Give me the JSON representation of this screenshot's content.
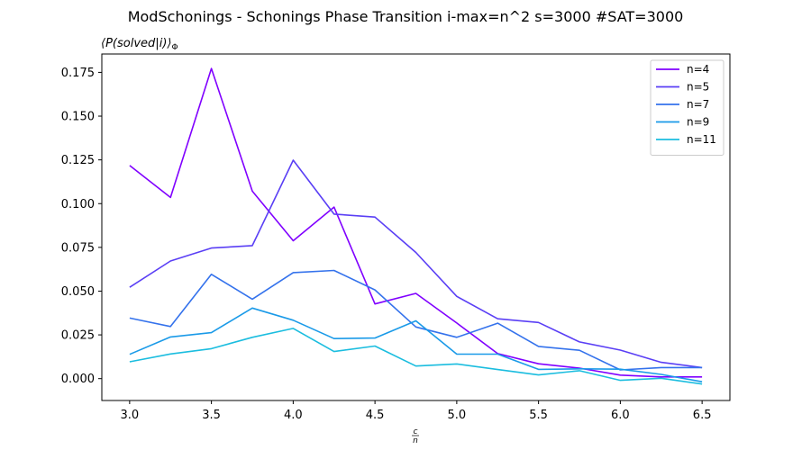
{
  "chart_data": {
    "type": "line",
    "title": "ModSchonings - Schonings Phase Transition  i-max=n^2 s=3000 #SAT=3000",
    "ylabel": "⟨P(solved|i)⟩Φ",
    "xlabel": "c/n",
    "xlim": [
      2.83,
      6.67
    ],
    "ylim": [
      -0.0125,
      0.1855
    ],
    "x": [
      3.0,
      3.25,
      3.5,
      3.75,
      4.0,
      4.25,
      4.5,
      4.75,
      5.0,
      5.25,
      5.5,
      5.75,
      6.0,
      6.25,
      6.5
    ],
    "x_ticks": [
      "3.0",
      "3.5",
      "4.0",
      "4.5",
      "5.0",
      "5.5",
      "6.0",
      "6.5"
    ],
    "y_ticks": [
      "0.000",
      "0.025",
      "0.050",
      "0.075",
      "0.100",
      "0.125",
      "0.150",
      "0.175"
    ],
    "legend_position": "top-right",
    "grid": false,
    "series": [
      {
        "name": "n=4",
        "color": "#8000ff",
        "values": [
          0.1218,
          0.1035,
          0.1772,
          0.1071,
          0.0788,
          0.098,
          0.0427,
          0.0487,
          0.0318,
          0.0143,
          0.0085,
          0.006,
          0.002,
          0.001,
          0.001
        ]
      },
      {
        "name": "n=5",
        "color": "#5a3ff5",
        "values": [
          0.0522,
          0.0672,
          0.0746,
          0.076,
          0.1248,
          0.094,
          0.0923,
          0.0721,
          0.047,
          0.0342,
          0.0321,
          0.021,
          0.0163,
          0.0093,
          0.0063
        ]
      },
      {
        "name": "n=7",
        "color": "#3472ec",
        "values": [
          0.0346,
          0.0298,
          0.0596,
          0.0454,
          0.0606,
          0.0618,
          0.0507,
          0.0295,
          0.0236,
          0.0317,
          0.0184,
          0.0162,
          0.005,
          0.0063,
          0.0063
        ]
      },
      {
        "name": "n=9",
        "color": "#1a9ae8",
        "values": [
          0.0139,
          0.0238,
          0.0263,
          0.0403,
          0.0334,
          0.0229,
          0.0232,
          0.033,
          0.014,
          0.014,
          0.0053,
          0.0056,
          0.0054,
          0.0024,
          -0.0018
        ]
      },
      {
        "name": "n=11",
        "color": "#1bbddf",
        "values": [
          0.0096,
          0.0141,
          0.0171,
          0.0236,
          0.0287,
          0.0155,
          0.0186,
          0.0072,
          0.0084,
          0.0052,
          0.0021,
          0.0045,
          -0.001,
          0.0002,
          -0.0031
        ]
      }
    ]
  }
}
